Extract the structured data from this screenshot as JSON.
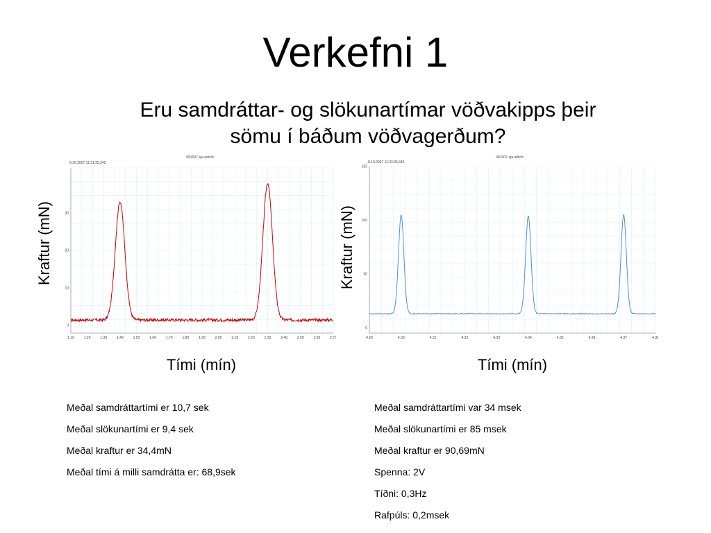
{
  "slide": {
    "title": "Verkefni 1",
    "subtitle_line1": "Eru samdráttar- og slökunartímar vöðvakipps þeir",
    "subtitle_line2": "sömu í báðum vöðvagerðum?"
  },
  "charts": {
    "left": {
      "ylabel": "Kraftur (mN)",
      "xlabel": "Tími (mín)",
      "header": "081007-sja.adicht",
      "timestamp": "8.10.2007 11:31:35,342",
      "line_color": "#cc0000"
    },
    "right": {
      "ylabel": "Kraftur (mN)",
      "xlabel": "Tími (mín)",
      "header": "081007-sja.adicht",
      "timestamp": "8.10.2007 11:33:35,643",
      "line_color": "#4f8fd6"
    }
  },
  "chart_data": [
    {
      "type": "line",
      "ylabel": "Kraftur (mN)",
      "xlabel": "Tími (mín)",
      "ylim": [
        -2,
        42
      ],
      "yticks": [
        0,
        10,
        20,
        30
      ],
      "grid": true,
      "x": [
        1.1,
        1.2,
        1.3,
        1.4,
        1.5,
        1.6,
        1.7,
        1.8,
        1.9,
        2.0,
        2.1,
        2.2,
        2.3,
        2.4,
        2.5,
        2.6,
        2.7
      ],
      "series": [
        {
          "values": [
            1.5,
            1.6,
            1.5,
            33,
            4,
            2.0,
            1.6,
            1.5,
            1.4,
            1.3,
            1.4,
            1.5,
            38,
            2.0,
            1.4,
            1.4,
            1.3
          ]
        }
      ]
    },
    {
      "type": "line",
      "ylabel": "Kraftur (mN)",
      "xlabel": "Tími (mín)",
      "ylim": [
        -5,
        150
      ],
      "yticks": [
        0,
        50,
        100,
        150
      ],
      "grid": true,
      "x": [
        4.29,
        4.3,
        4.31,
        4.32,
        4.33,
        4.34,
        4.35,
        4.36,
        4.37,
        4.38
      ],
      "series": [
        {
          "values": [
            13,
            105,
            13,
            13,
            13,
            104,
            13,
            13,
            105,
            13
          ]
        }
      ]
    }
  ],
  "stats": {
    "left": [
      "Meðal samdráttartími er 10,7 sek",
      "Meðal slökunartími er 9,4 sek",
      "Meðal kraftur er 34,4mN",
      "Meðal tími á milli samdrátta er: 68,9sek"
    ],
    "right": [
      "Meðal samdráttartími var 34 msek",
      "Meðal slökunartími er 85 msek",
      "Meðal kraftur er 90,69mN",
      "Spenna: 2V",
      "Tíðni: 0,3Hz",
      "Rafpúls: 0,2msek"
    ]
  }
}
